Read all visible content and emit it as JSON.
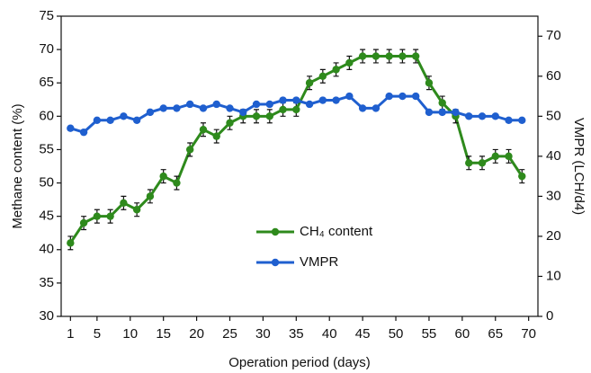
{
  "chart_data": {
    "type": "line",
    "xlabel": "Operation period (days)",
    "ylabel": "Methane content (%)",
    "y2label": "VMPR (LCH/d4)",
    "x": [
      1,
      3,
      5,
      7,
      9,
      11,
      13,
      15,
      17,
      19,
      21,
      23,
      25,
      27,
      29,
      31,
      33,
      35,
      37,
      39,
      41,
      43,
      45,
      47,
      49,
      51,
      53,
      55,
      57,
      59,
      61,
      63,
      65,
      67,
      69
    ],
    "xlim": [
      -0.4,
      71.4
    ],
    "xticks": [
      1,
      5,
      10,
      15,
      20,
      25,
      30,
      35,
      40,
      45,
      50,
      55,
      60,
      65,
      70
    ],
    "ylim": [
      30,
      75
    ],
    "yticks": [
      30,
      35,
      40,
      45,
      50,
      55,
      60,
      65,
      70,
      75
    ],
    "y2lim": [
      0,
      75
    ],
    "y2ticks": [
      0,
      10,
      20,
      30,
      40,
      50,
      60,
      70
    ],
    "series": [
      {
        "name": "CH₄ content",
        "color": "#2e8a1c",
        "values": [
          41,
          44,
          45,
          45,
          47,
          46,
          48,
          51,
          50,
          55,
          58,
          57,
          59,
          60,
          60,
          60,
          61,
          61,
          65,
          66,
          67,
          68,
          69,
          69,
          69,
          69,
          69,
          65,
          62,
          60,
          53,
          53,
          54,
          54,
          51
        ],
        "errors": [
          1,
          1,
          1,
          1,
          1,
          1,
          1,
          1,
          1,
          1,
          1,
          1,
          1,
          1,
          1,
          1,
          1,
          1,
          1,
          1,
          1,
          1,
          1,
          1,
          1,
          1,
          1,
          1,
          1,
          1,
          1,
          1,
          1,
          1,
          1
        ]
      },
      {
        "name": "VMPR",
        "color": "#1f5fcf",
        "axis": "y2",
        "values": [
          47,
          46,
          49,
          49,
          50,
          49,
          51,
          52,
          52,
          53,
          52,
          53,
          52,
          51,
          53,
          53,
          54,
          54,
          53,
          54,
          54,
          55,
          52,
          52,
          55,
          55,
          55,
          51,
          51,
          51,
          50,
          50,
          50,
          49,
          49
        ]
      }
    ]
  }
}
